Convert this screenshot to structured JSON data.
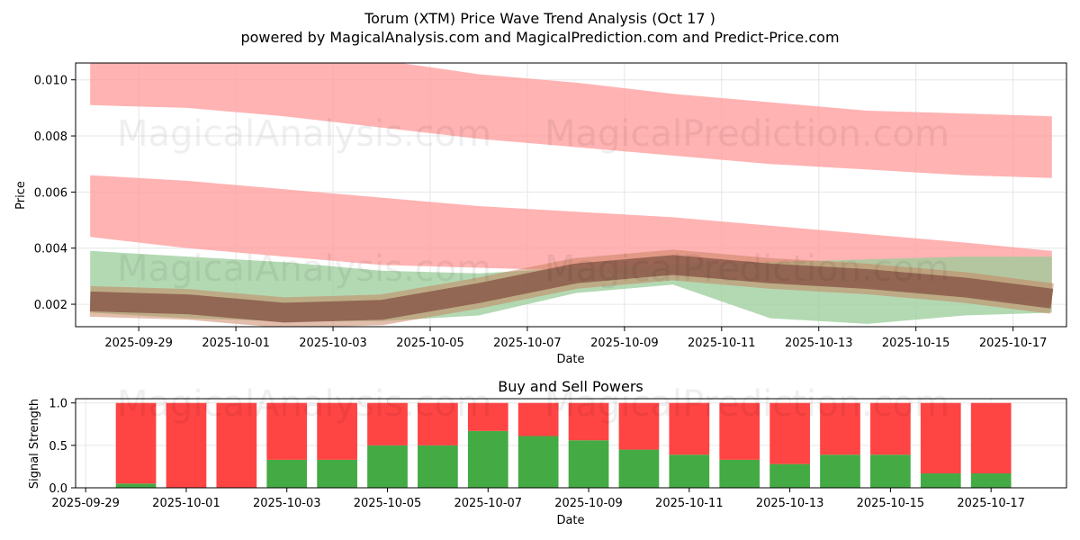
{
  "title_line1": "Torum (XTM) Price Wave Trend Analysis (Oct 17 )",
  "title_line2": "powered by MagicalAnalysis.com and MagicalPrediction.com and Predict-Price.com",
  "watermarks": [
    "MagicalAnalysis.com",
    "MagicalPrediction.com"
  ],
  "colors": {
    "red": "#ff4444",
    "green": "#44aa44",
    "sell_band": "#ff9999",
    "buy_band": "#99cc99",
    "brown": "#8b5a4a"
  },
  "chart_data": [
    {
      "type": "area",
      "title": "",
      "xlabel": "Date",
      "ylabel": "Price",
      "xlim": [
        "2025-09-27.7",
        "2025-10-18.1"
      ],
      "ylim": [
        0.0012,
        0.0106
      ],
      "xticks": [
        "2025-09-29",
        "2025-10-01",
        "2025-10-03",
        "2025-10-05",
        "2025-10-07",
        "2025-10-09",
        "2025-10-11",
        "2025-10-13",
        "2025-10-15",
        "2025-10-17"
      ],
      "yticks": [
        "0.002",
        "0.004",
        "0.006",
        "0.008",
        "0.010"
      ],
      "x": [
        "2025-09-28",
        "2025-09-30",
        "2025-10-02",
        "2025-10-04",
        "2025-10-06",
        "2025-10-08",
        "2025-10-10",
        "2025-10-12",
        "2025-10-14",
        "2025-10-16",
        "2025-10-17.8"
      ],
      "bands": [
        {
          "name": "upper sell zone",
          "color": "#ff9999",
          "upper": [
            0.0107,
            0.0107,
            0.0107,
            0.0107,
            0.0102,
            0.0099,
            0.0095,
            0.0092,
            0.0089,
            0.0088,
            0.0087
          ],
          "lower": [
            0.0091,
            0.009,
            0.0087,
            0.0083,
            0.0079,
            0.0076,
            0.0073,
            0.007,
            0.0068,
            0.0066,
            0.0065
          ]
        },
        {
          "name": "lower sell zone",
          "color": "#ff9999",
          "upper": [
            0.0066,
            0.0064,
            0.0061,
            0.0058,
            0.0055,
            0.0053,
            0.0051,
            0.0048,
            0.0045,
            0.0042,
            0.0039
          ],
          "lower": [
            0.0044,
            0.004,
            0.0037,
            0.0034,
            0.0033,
            0.0032,
            0.003,
            0.0028,
            0.0026,
            0.0023,
            0.002
          ]
        },
        {
          "name": "buy zone",
          "color": "#99cc99",
          "upper": [
            0.0039,
            0.0037,
            0.0035,
            0.0032,
            0.0031,
            0.0033,
            0.0034,
            0.0035,
            0.0036,
            0.0037,
            0.0037
          ],
          "lower": [
            0.0017,
            0.0015,
            0.0014,
            0.0014,
            0.0016,
            0.0024,
            0.0027,
            0.0015,
            0.0013,
            0.0016,
            0.0017
          ]
        }
      ],
      "series": [
        {
          "name": "price wave center",
          "color": "#8b5a4a",
          "values": [
            0.0021,
            0.002,
            0.0017,
            0.0018,
            0.0024,
            0.0031,
            0.0034,
            0.0031,
            0.0029,
            0.0026,
            0.0022
          ]
        }
      ]
    },
    {
      "type": "bar",
      "title": "Buy and Sell Powers",
      "xlabel": "Date",
      "ylabel": "Signal Strength",
      "xlim": [
        "2025-09-28.8",
        "2025-10-18.5"
      ],
      "ylim": [
        0,
        1.05
      ],
      "xticks": [
        "2025-09-29",
        "2025-10-01",
        "2025-10-03",
        "2025-10-05",
        "2025-10-07",
        "2025-10-09",
        "2025-10-11",
        "2025-10-13",
        "2025-10-15",
        "2025-10-17"
      ],
      "yticks": [
        "0.0",
        "0.5",
        "1.0"
      ],
      "categories": [
        "2025-09-30",
        "2025-10-01",
        "2025-10-02",
        "2025-10-03",
        "2025-10-04",
        "2025-10-05",
        "2025-10-06",
        "2025-10-07",
        "2025-10-08",
        "2025-10-09",
        "2025-10-10",
        "2025-10-11",
        "2025-10-12",
        "2025-10-13",
        "2025-10-14",
        "2025-10-15",
        "2025-10-16",
        "2025-10-17"
      ],
      "series": [
        {
          "name": "Buy",
          "color": "#44aa44",
          "values": [
            0.05,
            0.0,
            0.0,
            0.33,
            0.33,
            0.5,
            0.5,
            0.67,
            0.61,
            0.56,
            0.45,
            0.39,
            0.33,
            0.28,
            0.39,
            0.39,
            0.17,
            0.17
          ]
        },
        {
          "name": "Sell",
          "color": "#ff4444",
          "values": [
            0.95,
            1.0,
            1.0,
            0.67,
            0.67,
            0.5,
            0.5,
            0.33,
            0.39,
            0.44,
            0.55,
            0.61,
            0.67,
            0.72,
            0.61,
            0.61,
            0.83,
            0.83
          ]
        }
      ]
    }
  ]
}
